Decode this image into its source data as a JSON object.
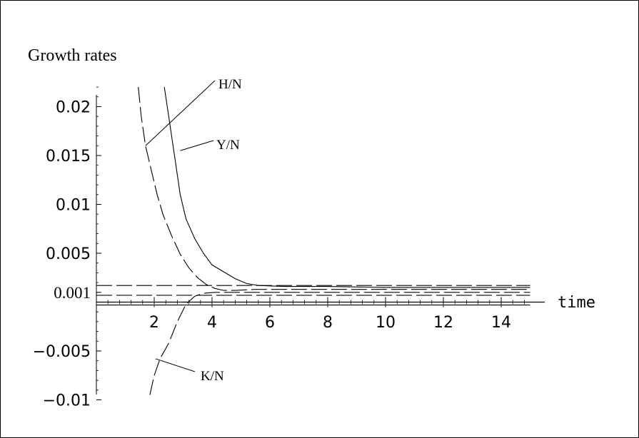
{
  "chart_data": {
    "type": "line",
    "title": "Growth rates",
    "xlabel": "time",
    "ylabel": "",
    "xlim": [
      0,
      15
    ],
    "ylim": [
      -0.01,
      0.022
    ],
    "x_ticks": [
      {
        "v": 2,
        "label": "2"
      },
      {
        "v": 4,
        "label": "4"
      },
      {
        "v": 6,
        "label": "6"
      },
      {
        "v": 8,
        "label": "8"
      },
      {
        "v": 10,
        "label": "10"
      },
      {
        "v": 12,
        "label": "12"
      },
      {
        "v": 14,
        "label": "14"
      }
    ],
    "y_ticks": [
      {
        "v": -0.01,
        "label": "-0.01"
      },
      {
        "v": -0.005,
        "label": "-0.005"
      },
      {
        "v": 0.001,
        "label": "0.001"
      },
      {
        "v": 0.005,
        "label": "0.005"
      },
      {
        "v": 0.01,
        "label": "0.01"
      },
      {
        "v": 0.015,
        "label": "0.015"
      },
      {
        "v": 0.02,
        "label": "0.02"
      }
    ],
    "grid": false,
    "series": [
      {
        "name": "Y/N",
        "style": "solid",
        "x": [
          2.35,
          2.5,
          2.7,
          2.9,
          3.1,
          3.4,
          3.7,
          4.0,
          4.4,
          4.8,
          5.2,
          5.6,
          6.5,
          8,
          10,
          15
        ],
        "y": [
          0.022,
          0.019,
          0.015,
          0.011,
          0.0085,
          0.0065,
          0.005,
          0.0038,
          0.0031,
          0.0024,
          0.0019,
          0.0017,
          0.0016,
          0.0016,
          0.0015,
          0.0015
        ]
      },
      {
        "name": "H/N",
        "style": "dashed",
        "x": [
          1.45,
          1.55,
          1.7,
          1.9,
          2.1,
          2.3,
          2.6,
          2.9,
          3.2,
          3.5,
          3.8,
          4.1,
          4.4,
          4.8,
          5.5,
          7,
          10,
          15
        ],
        "y": [
          0.022,
          0.019,
          0.016,
          0.0135,
          0.011,
          0.009,
          0.0068,
          0.0049,
          0.0035,
          0.0025,
          0.0018,
          0.0014,
          0.0012,
          0.0012,
          0.0013,
          0.0013,
          0.0013,
          0.0013
        ]
      },
      {
        "name": "K/N",
        "style": "dashed",
        "x": [
          1.85,
          2.0,
          2.2,
          2.5,
          2.8,
          3.1,
          3.4,
          3.7,
          4.1,
          4.5,
          5.0,
          6,
          8,
          15
        ],
        "y": [
          -0.0095,
          -0.0075,
          -0.0058,
          -0.0042,
          -0.002,
          -0.0002,
          0.0006,
          0.0009,
          0.001,
          0.001,
          0.001,
          0.001,
          0.001,
          0.001
        ]
      },
      {
        "name": "",
        "style": "dashed",
        "x": [
          0,
          15
        ],
        "y": [
          0.0017,
          0.0017
        ]
      },
      {
        "name": "",
        "style": "dashed",
        "x": [
          0,
          15
        ],
        "y": [
          0.0007,
          0.0007
        ]
      },
      {
        "name": "",
        "style": "solid",
        "x": [
          0,
          15
        ],
        "y": [
          -0.0003,
          -0.0003
        ]
      }
    ],
    "annotations": [
      {
        "text": "H/N",
        "target_x": 1.7,
        "target_y": 0.016
      },
      {
        "text": "Y/N",
        "target_x": 2.9,
        "target_y": 0.0155
      },
      {
        "text": "K/N",
        "target_x": 2.05,
        "target_y": -0.0058
      }
    ]
  }
}
